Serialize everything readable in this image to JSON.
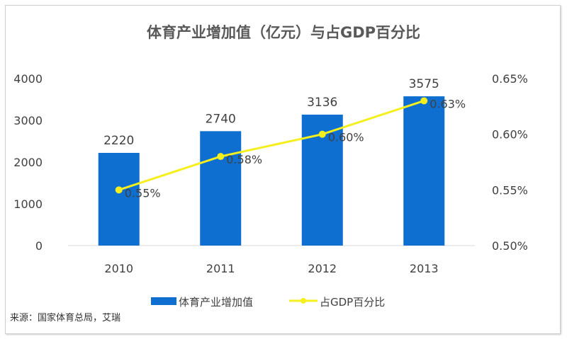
{
  "chart_data": {
    "type": "bar+line",
    "title": "体育产业增加值（亿元）与占GDP百分比",
    "categories": [
      "2010",
      "2011",
      "2012",
      "2013"
    ],
    "series": [
      {
        "name": "体育产业增加值",
        "type": "bar",
        "axis": "left",
        "values": [
          2220,
          2740,
          3136,
          3575
        ],
        "labels": [
          "2220",
          "2740",
          "3136",
          "3575"
        ],
        "color": "#0f6fd0"
      },
      {
        "name": "占GDP百分比",
        "type": "line",
        "axis": "right",
        "values": [
          0.55,
          0.58,
          0.6,
          0.63
        ],
        "labels": [
          "0.55%",
          "0.58%",
          "0.60%",
          "0.63%"
        ],
        "color": "#f5ef1e"
      }
    ],
    "left_axis": {
      "range": [
        0,
        4000
      ],
      "ticks": [
        "0",
        "1000",
        "2000",
        "3000",
        "4000"
      ]
    },
    "right_axis": {
      "range": [
        0.5,
        0.65
      ],
      "ticks": [
        "0.50%",
        "0.55%",
        "0.60%",
        "0.65%"
      ]
    },
    "grid": false,
    "legend": "bottom"
  },
  "source": "来源：国家体育总局，艾瑞"
}
